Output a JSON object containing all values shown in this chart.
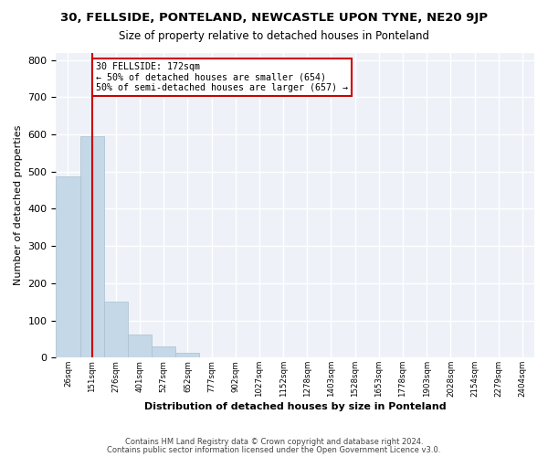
{
  "title": "30, FELLSIDE, PONTELAND, NEWCASTLE UPON TYNE, NE20 9JP",
  "subtitle": "Size of property relative to detached houses in Ponteland",
  "xlabel": "Distribution of detached houses by size in Ponteland",
  "ylabel": "Number of detached properties",
  "bar_values": [
    487,
    596,
    150,
    62,
    30,
    12,
    0,
    0,
    0,
    0,
    0,
    0,
    0,
    0,
    0,
    0,
    0,
    0,
    0,
    0
  ],
  "bar_labels": [
    "26sqm",
    "151sqm",
    "276sqm",
    "401sqm",
    "527sqm",
    "652sqm",
    "777sqm",
    "902sqm",
    "1027sqm",
    "1152sqm",
    "1278sqm",
    "1403sqm",
    "1528sqm",
    "1653sqm",
    "1778sqm",
    "1903sqm",
    "2028sqm",
    "2154sqm",
    "2279sqm",
    "2404sqm"
  ],
  "bar_color": "#c5d8e8",
  "bar_edge_color": "#aabfd0",
  "vline_x": 1.0,
  "vline_color": "#cc0000",
  "annotation_text": "30 FELLSIDE: 172sqm\n← 50% of detached houses are smaller (654)\n50% of semi-detached houses are larger (657) →",
  "annotation_box_color": "white",
  "annotation_box_edge_color": "#cc0000",
  "ylim": [
    0,
    820
  ],
  "yticks": [
    0,
    100,
    200,
    300,
    400,
    500,
    600,
    700,
    800
  ],
  "background_color": "#eef2f8",
  "grid_color": "white",
  "footer_line1": "Contains HM Land Registry data © Crown copyright and database right 2024.",
  "footer_line2": "Contains public sector information licensed under the Open Government Licence v3.0."
}
